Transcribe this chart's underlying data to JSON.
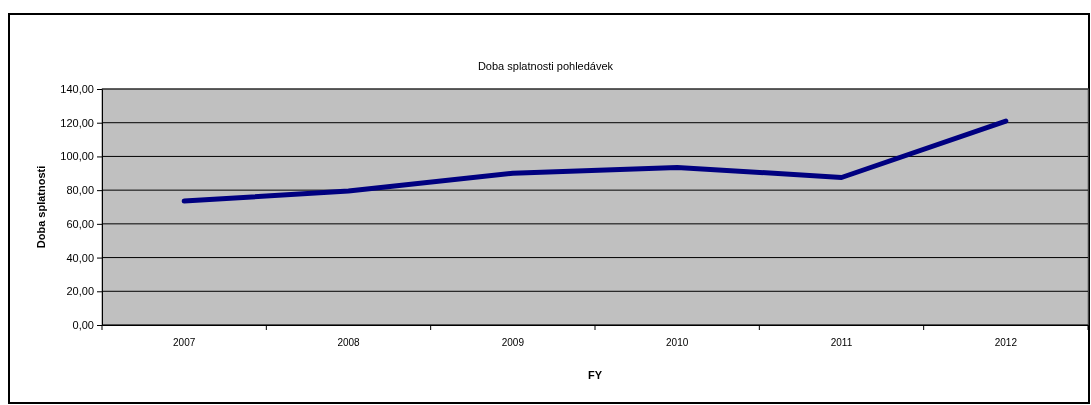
{
  "chart_data": {
    "type": "line",
    "title": "Doba splatnosti pohledávek",
    "xlabel": "FY",
    "ylabel": "Doba splatnosti",
    "categories": [
      "2007",
      "2008",
      "2009",
      "2010",
      "2011",
      "2012"
    ],
    "series": [
      {
        "color": "#000080",
        "values": [
          73.5,
          79.5,
          90,
          93.5,
          87.5,
          121
        ]
      }
    ],
    "ylim": [
      0,
      140
    ],
    "yticks": [
      {
        "value": 0,
        "label": "0,00"
      },
      {
        "value": 20,
        "label": "20,00"
      },
      {
        "value": 40,
        "label": "40,00"
      },
      {
        "value": 60,
        "label": "60,00"
      },
      {
        "value": 80,
        "label": "80,00"
      },
      {
        "value": 100,
        "label": "100,00"
      },
      {
        "value": 120,
        "label": "120,00"
      },
      {
        "value": 140,
        "label": "140,00"
      }
    ],
    "grid": "y",
    "marker": "none",
    "line_style": "solid"
  }
}
